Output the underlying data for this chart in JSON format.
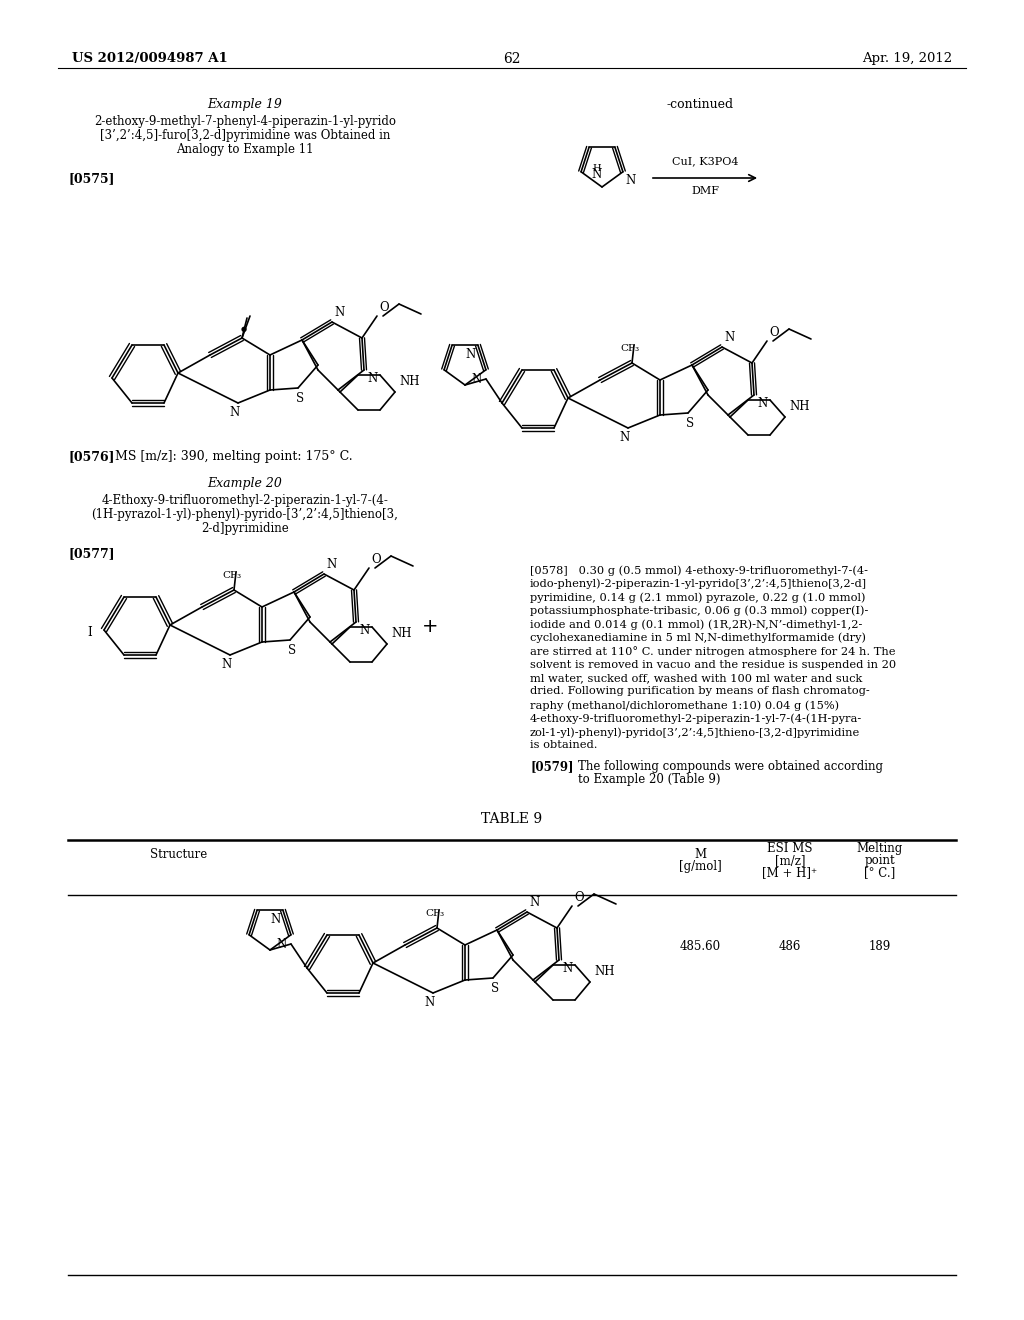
{
  "page_number": "62",
  "header_left": "US 2012/0094987 A1",
  "header_right": "Apr. 19, 2012",
  "background_color": "#ffffff",
  "text_color": "#000000",
  "example19_title": "Example 19",
  "example19_sub1": "2-ethoxy-9-methyl-7-phenyl-4-piperazin-1-yl-pyrido",
  "example19_sub2": "[3’,2’:4,5]-furo[3,2-d]pyrimidine was Obtained in",
  "example19_sub3": "Analogy to Example 11",
  "ref0575": "[0575]",
  "ref0576": "[0576]",
  "ms0576": "MS [m/z]: 390, melting point: 175° C.",
  "example20_title": "Example 20",
  "example20_sub1": "4-Ethoxy-9-trifluoromethyl-2-piperazin-1-yl-7-(4-",
  "example20_sub2": "(1H-pyrazol-1-yl)-phenyl)-pyrido-[3’,2’:4,5]thieno[3,",
  "example20_sub3": "2-d]pyrimidine",
  "ref0577": "[0577]",
  "continued_label": "-continued",
  "reaction_reagents_line": "CuI, K3PO4",
  "reaction_solvent_line": "DMF",
  "ref0578": "[0578]",
  "text0578_line1": "0.30 g (0.5 mmol) 4-ethoxy-9-trifluoromethyl-7-(4-",
  "text0578_line2": "iodo-phenyl)-2-piperazin-1-yl-pyrido[3’,2’:4,5]thieno[3,2-d]",
  "text0578_line3": "pyrimidine, 0.14 g (2.1 mmol) pyrazole, 0.22 g (1.0 mmol)",
  "text0578_line4": "potassiumphosphate-tribasic, 0.06 g (0.3 mmol) copper(I)-",
  "text0578_line5": "iodide and 0.014 g (0.1 mmol) (1R,2R)-N,N’-dimethyl-1,2-",
  "text0578_line6": "cyclohexanediamine in 5 ml N,N-dimethylformamide (dry)",
  "text0578_line7": "are stirred at 110° C. under nitrogen atmosphere for 24 h. The",
  "text0578_line8": "solvent is removed in vacuo and the residue is suspended in 20",
  "text0578_line9": "ml water, sucked off, washed with 100 ml water and suck",
  "text0578_line10": "dried. Following purification by means of flash chromatog-",
  "text0578_line11": "raphy (methanol/dichloromethane 1:10) 0.04 g (15%)",
  "text0578_line12": "4-ethoxy-9-trifluoromethyl-2-piperazin-1-yl-7-(4-(1H-pyra-",
  "text0578_line13": "zol-1-yl)-phenyl)-pyrido[3’,2’:4,5]thieno-[3,2-d]pyrimidine",
  "text0578_line14": "is obtained.",
  "ref0579": "[0579]",
  "text0579a": "The following compounds were obtained according",
  "text0579b": "to Example 20 (Table 9)",
  "table9_title": "TABLE 9",
  "col_structure": "Structure",
  "col_m_label": "M",
  "col_m_unit": "[g/mol]",
  "col_esi_label": "ESI MS",
  "col_esi_mz": "[m/z]",
  "col_esi_ion": "[M + H]⁺",
  "col_mp_label": "Melting",
  "col_mp_label2": "point",
  "col_mp_unit": "[° C.]",
  "val_m": "485.60",
  "val_esi": "486",
  "val_mp": "189"
}
